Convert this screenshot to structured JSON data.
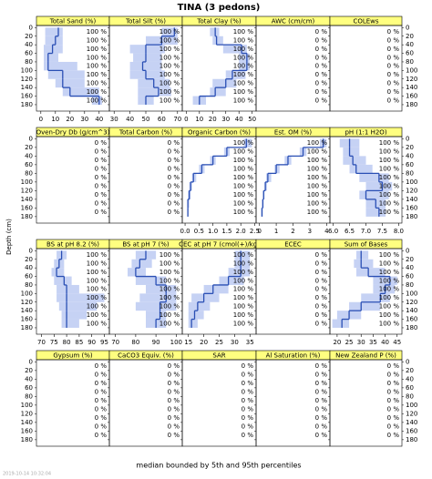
{
  "title": "TINA (3 pedons)",
  "ylabel": "Depth (cm)",
  "footer": "median bounded by 5th and 95th percentiles",
  "timestamp": "2019-10-14 10:32:04",
  "depths": [
    0,
    20,
    40,
    60,
    80,
    100,
    120,
    140,
    160,
    180
  ],
  "ylim": [
    195,
    -5
  ],
  "yticks": [
    0,
    20,
    40,
    60,
    80,
    100,
    120,
    140,
    160,
    180
  ],
  "line_color": "#2a4fb4",
  "band_color": "#c6d2f4",
  "strip_color": "#ffff80",
  "chart_data": [
    {
      "type": "profile",
      "title": "Total Sand (%)",
      "xlim": [
        -3,
        47
      ],
      "xticks": [
        0,
        10,
        20,
        30,
        40
      ],
      "pct_labels": [
        "100 %",
        "100 %",
        "100 %",
        "100 %",
        "100 %",
        "100 %",
        "100 %",
        "100 %",
        "100 %"
      ],
      "median": [
        12,
        10,
        8,
        5,
        5,
        15,
        15,
        20,
        40
      ],
      "low": [
        3,
        3,
        2,
        2,
        2,
        5,
        10,
        15,
        35
      ],
      "high": [
        15,
        15,
        15,
        12,
        25,
        30,
        30,
        40,
        42
      ]
    },
    {
      "type": "profile",
      "title": "Total Silt (%)",
      "xlim": [
        27,
        73
      ],
      "xticks": [
        30,
        40,
        50,
        60,
        70
      ],
      "pct_labels": [
        "100 %",
        "100 %",
        "100 %",
        "100 %",
        "100 %",
        "100 %",
        "100 %",
        "100 %",
        "100 %"
      ],
      "median": [
        68,
        60,
        50,
        50,
        48,
        50,
        55,
        58,
        50
      ],
      "low": [
        60,
        50,
        40,
        42,
        40,
        40,
        45,
        45,
        45
      ],
      "high": [
        70,
        70,
        62,
        60,
        60,
        62,
        65,
        66,
        55
      ]
    },
    {
      "type": "profile",
      "title": "Total Clay (%)",
      "xlim": [
        -3,
        53
      ],
      "xticks": [
        0,
        10,
        20,
        30,
        40,
        50
      ],
      "pct_labels": [
        "100 %",
        "100 %",
        "100 %",
        "100 %",
        "100 %",
        "100 %",
        "100 %",
        "100 %",
        "100 %"
      ],
      "median": [
        22,
        23,
        42,
        46,
        46,
        35,
        30,
        22,
        10
      ],
      "low": [
        18,
        20,
        28,
        40,
        40,
        30,
        20,
        18,
        5
      ],
      "high": [
        25,
        28,
        46,
        48,
        48,
        45,
        38,
        30,
        15
      ]
    },
    {
      "type": "profile",
      "title": "AWC (cm/cm)",
      "pct_labels": [
        "0 %",
        "0 %",
        "0 %",
        "0 %",
        "0 %",
        "0 %",
        "0 %",
        "0 %",
        "0 %"
      ]
    },
    {
      "type": "profile",
      "title": "COLEws",
      "pct_labels": [
        "0 %",
        "0 %",
        "0 %",
        "0 %",
        "0 %",
        "0 %",
        "0 %",
        "0 %",
        "0 %"
      ]
    },
    {
      "type": "profile",
      "title": "Oven-Dry Db (g/cm^3)",
      "pct_labels": [
        "0 %",
        "0 %",
        "0 %",
        "0 %",
        "0 %",
        "0 %",
        "0 %",
        "0 %",
        "0 %"
      ]
    },
    {
      "type": "profile",
      "title": "Total Carbon (%)",
      "pct_labels": [
        "0 %",
        "0 %",
        "0 %",
        "0 %",
        "0 %",
        "0 %",
        "0 %",
        "0 %",
        "0 %"
      ]
    },
    {
      "type": "profile",
      "title": "Organic Carbon (%)",
      "xlim": [
        -0.1,
        2.55
      ],
      "xticks": [
        {
          "value": 0,
          "label": "0.0"
        },
        {
          "value": 0.5,
          "label": "0.5"
        },
        {
          "value": 1,
          "label": "1.0"
        },
        {
          "value": 1.5,
          "label": "1.5"
        },
        {
          "value": 2,
          "label": "2.0"
        },
        {
          "value": 2.5,
          "label": "2.5"
        }
      ],
      "pct_labels": [
        "100 %",
        "100 %",
        "100 %",
        "100 %",
        "100 %",
        "100 %",
        "100 %",
        "100 %",
        "100 %"
      ],
      "median": [
        2.2,
        1.5,
        1.0,
        0.6,
        0.3,
        0.2,
        0.15,
        0.1,
        0.1
      ],
      "low": [
        2.1,
        1.4,
        0.9,
        0.5,
        0.25,
        0.15,
        0.1,
        0.08,
        0.08
      ],
      "high": [
        2.4,
        1.6,
        1.1,
        0.7,
        0.4,
        0.25,
        0.2,
        0.15,
        0.12
      ]
    },
    {
      "type": "profile",
      "title": "Est. OM (%)",
      "xlim": [
        -0.2,
        4.2
      ],
      "xticks": [
        0,
        1,
        2,
        3,
        4
      ],
      "pct_labels": [
        "100 %",
        "100 %",
        "100 %",
        "100 %",
        "100 %",
        "100 %",
        "100 %",
        "100 %",
        "100 %"
      ],
      "median": [
        3.8,
        2.6,
        1.7,
        1.0,
        0.5,
        0.35,
        0.25,
        0.2,
        0.15
      ],
      "low": [
        3.6,
        2.4,
        1.5,
        0.9,
        0.4,
        0.3,
        0.2,
        0.15,
        0.1
      ],
      "high": [
        4.0,
        2.8,
        1.9,
        1.2,
        0.7,
        0.45,
        0.3,
        0.25,
        0.2
      ]
    },
    {
      "type": "profile",
      "title": "pH (1:1 H2O)",
      "xlim": [
        5.9,
        8.1
      ],
      "xticks": [
        {
          "value": 6,
          "label": "6.0"
        },
        {
          "value": 6.5,
          "label": "6.5"
        },
        {
          "value": 7,
          "label": "7.0"
        },
        {
          "value": 7.5,
          "label": "7.5"
        },
        {
          "value": 8,
          "label": "8.0"
        }
      ],
      "pct_labels": [
        "100 %",
        "100 %",
        "100 %",
        "100 %",
        "100 %",
        "100 %",
        "100 %",
        "100 %",
        "100 %"
      ],
      "median": [
        6.5,
        6.5,
        6.6,
        6.7,
        7.4,
        7.5,
        7.0,
        7.3,
        7.4
      ],
      "low": [
        6.2,
        6.3,
        6.3,
        6.5,
        6.8,
        7.0,
        6.8,
        7.0,
        7.0
      ],
      "high": [
        6.8,
        6.8,
        7.0,
        7.2,
        7.7,
        7.8,
        7.7,
        7.6,
        7.6
      ]
    },
    {
      "type": "profile",
      "title": "BS at pH 8.2 (%)",
      "xlim": [
        68,
        97
      ],
      "xticks": [
        70,
        75,
        80,
        85,
        90,
        95
      ],
      "pct_labels": [
        "100 %",
        "100 %",
        "100 %",
        "100 %",
        "100 %",
        "100 %",
        "100 %",
        "100 %",
        "100 %"
      ],
      "median": [
        78,
        77,
        76,
        79,
        80,
        80,
        80,
        80,
        80
      ],
      "low": [
        76,
        75,
        74,
        75,
        76,
        76,
        77,
        78,
        78
      ],
      "high": [
        80,
        79,
        79,
        82,
        85,
        95,
        92,
        88,
        85
      ]
    },
    {
      "type": "profile",
      "title": "BS at pH 7 (%)",
      "xlim": [
        67,
        103
      ],
      "xticks": [
        70,
        80,
        90,
        100
      ],
      "pct_labels": [
        "100 %",
        "100 %",
        "100 %",
        "100 %",
        "100 %",
        "100 %",
        "100 %",
        "100 %",
        "100 %"
      ],
      "median": [
        85,
        82,
        80,
        90,
        95,
        95,
        92,
        92,
        90
      ],
      "low": [
        80,
        78,
        76,
        80,
        85,
        82,
        80,
        85,
        85
      ],
      "high": [
        90,
        88,
        85,
        95,
        100,
        100,
        100,
        95,
        95
      ]
    },
    {
      "type": "profile",
      "title": "CEC at pH 7 (cmol(+)/kg)",
      "xlim": [
        13,
        37
      ],
      "xticks": [
        15,
        20,
        25,
        30,
        35
      ],
      "pct_labels": [
        "100 %",
        "100 %",
        "100 %",
        "100 %",
        "100 %",
        "100 %",
        "100 %",
        "100 %",
        "100 %"
      ],
      "median": [
        32,
        32,
        32,
        28,
        23,
        20,
        18,
        17,
        16
      ],
      "low": [
        30,
        30,
        28,
        25,
        20,
        16,
        15,
        15,
        15
      ],
      "high": [
        35,
        35,
        35,
        33,
        28,
        25,
        22,
        20,
        18
      ]
    },
    {
      "type": "profile",
      "title": "ECEC",
      "pct_labels": [
        "0 %",
        "0 %",
        "0 %",
        "0 %",
        "0 %",
        "0 %",
        "0 %",
        "0 %",
        "0 %"
      ]
    },
    {
      "type": "profile",
      "title": "Sum of Bases",
      "xlim": [
        17,
        47
      ],
      "xticks": [
        20,
        25,
        30,
        35,
        40,
        45
      ],
      "pct_labels": [
        "100 %",
        "100 %",
        "100 %",
        "100 %",
        "100 %",
        "100 %",
        "100 %",
        "100 %",
        "100 %"
      ],
      "median": [
        30,
        30,
        33,
        42,
        40,
        38,
        30,
        25,
        22
      ],
      "low": [
        28,
        27,
        28,
        35,
        35,
        30,
        25,
        20,
        18
      ],
      "high": [
        33,
        35,
        40,
        45,
        44,
        42,
        38,
        30,
        25
      ]
    },
    {
      "type": "profile",
      "title": "Gypsum (%)",
      "pct_labels": [
        "0 %",
        "0 %",
        "0 %",
        "0 %",
        "0 %",
        "0 %",
        "0 %",
        "0 %",
        "0 %"
      ]
    },
    {
      "type": "profile",
      "title": "CaCO3 Equiv. (%)",
      "pct_labels": [
        "0 %",
        "0 %",
        "0 %",
        "0 %",
        "0 %",
        "0 %",
        "0 %",
        "0 %",
        "0 %"
      ]
    },
    {
      "type": "profile",
      "title": "SAR",
      "pct_labels": [
        "0 %",
        "0 %",
        "0 %",
        "0 %",
        "0 %",
        "0 %",
        "0 %",
        "0 %",
        "0 %"
      ]
    },
    {
      "type": "profile",
      "title": "Al Saturation (%)",
      "pct_labels": [
        "0 %",
        "0 %",
        "0 %",
        "0 %",
        "0 %",
        "0 %",
        "0 %",
        "0 %",
        "0 %"
      ]
    },
    {
      "type": "profile",
      "title": "New Zealand P (%)",
      "pct_labels": [
        "0 %",
        "0 %",
        "0 %",
        "0 %",
        "0 %",
        "0 %",
        "0 %",
        "0 %",
        "0 %"
      ]
    }
  ]
}
